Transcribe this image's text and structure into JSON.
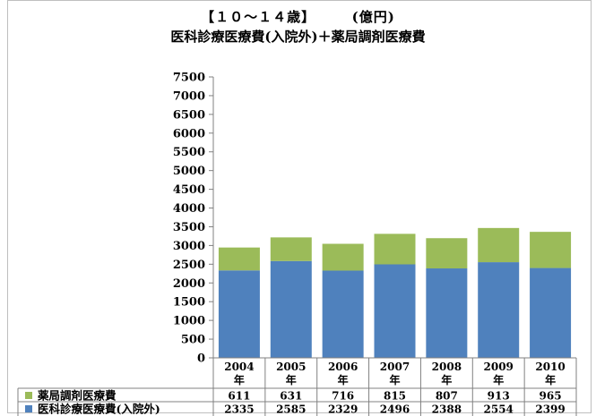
{
  "title_range": "【１０～１４歳】",
  "title_unit": "(億円)",
  "subtitle": "医科診療医療費(入院外)＋薬局調剤医療費",
  "chart_data": {
    "type": "bar",
    "stacked": true,
    "categories": [
      {
        "year": "2004",
        "suffix": "年"
      },
      {
        "year": "2005",
        "suffix": "年"
      },
      {
        "year": "2006",
        "suffix": "年"
      },
      {
        "year": "2007",
        "suffix": "年"
      },
      {
        "year": "2008",
        "suffix": "年"
      },
      {
        "year": "2009",
        "suffix": "年"
      },
      {
        "year": "2010",
        "suffix": "年"
      }
    ],
    "series": [
      {
        "name": "医科診療医療費(入院外)",
        "color": "#4f81bd",
        "values": [
          2335,
          2585,
          2329,
          2496,
          2388,
          2554,
          2399
        ]
      },
      {
        "name": "薬局調剤医療費",
        "color": "#9bbb59",
        "values": [
          611,
          631,
          716,
          815,
          807,
          913,
          965
        ]
      }
    ],
    "ylim": [
      0,
      7500
    ],
    "yticks": [
      0,
      500,
      1000,
      1500,
      2000,
      2500,
      3000,
      3500,
      4000,
      4500,
      5000,
      5500,
      6000,
      6500,
      7000,
      7500
    ],
    "grid": false,
    "legend": "data-table"
  }
}
